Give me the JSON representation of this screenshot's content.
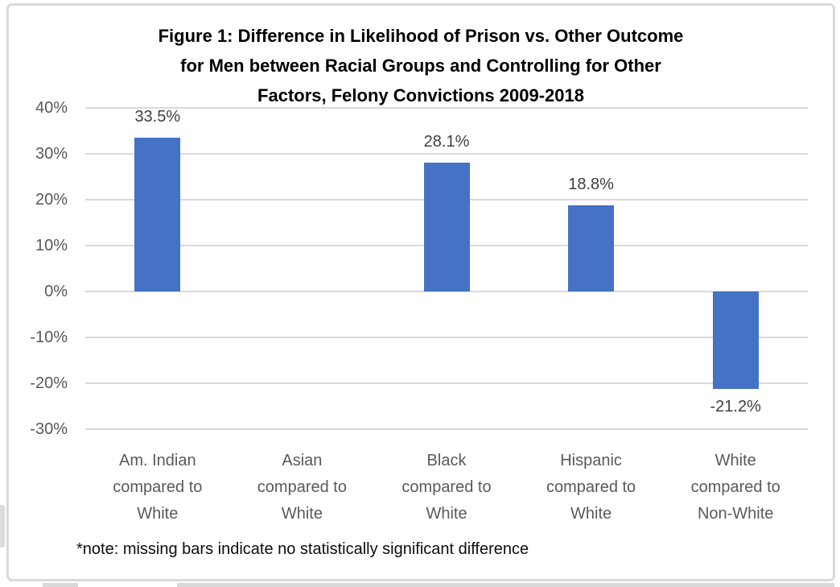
{
  "chart_data": {
    "type": "bar",
    "title": "Figure 1: Difference in Likelihood of Prison vs. Other Outcome for Men between Racial Groups and Controlling for Other Factors, Felony Convictions 2009-2018",
    "title_lines": [
      "Figure 1: Difference in Likelihood of Prison vs. Other Outcome",
      "for Men between Racial Groups and Controlling for Other",
      "Factors, Felony Convictions 2009-2018"
    ],
    "categories": [
      "Am. Indian compared to White",
      "Asian compared to White",
      "Black compared to White",
      "Hispanic compared to White",
      "White compared to Non-White"
    ],
    "category_lines": [
      [
        "Am. Indian",
        "compared to",
        "White"
      ],
      [
        "Asian",
        "compared to",
        "White"
      ],
      [
        "Black",
        "compared to",
        "White"
      ],
      [
        "Hispanic",
        "compared to",
        "White"
      ],
      [
        "White",
        "compared to",
        "Non-White"
      ]
    ],
    "values": [
      33.5,
      null,
      28.1,
      18.8,
      -21.2
    ],
    "data_labels": [
      "33.5%",
      null,
      "28.1%",
      "18.8%",
      "-21.2%"
    ],
    "xlabel": "",
    "ylabel": "",
    "ylim": [
      -30,
      40
    ],
    "yticks": [
      40,
      30,
      20,
      10,
      0,
      -10,
      -20,
      -30
    ],
    "ytick_labels": [
      "40%",
      "30%",
      "20%",
      "10%",
      "0%",
      "-10%",
      "-20%",
      "-30%"
    ],
    "grid": true,
    "legend": false,
    "note": "*note: missing bars indicate no statistically significant difference",
    "colors": {
      "bar": "#4472c4",
      "gridline": "#d9d9d9",
      "axis_text": "#595959",
      "value_label": "#404040",
      "title_text": "#000000",
      "frame_border": "#d9d9d9"
    }
  }
}
